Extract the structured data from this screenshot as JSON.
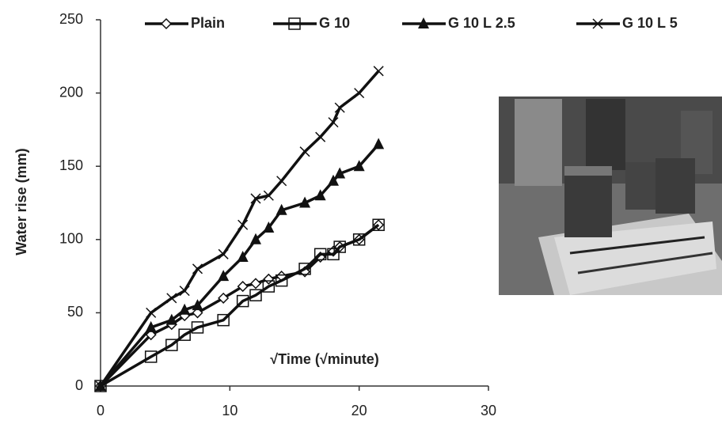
{
  "chart_data": {
    "type": "line",
    "x_label": "√Time (√minute)",
    "y_label": "Water rise (mm)",
    "x": [
      0,
      3.9,
      5.5,
      6.5,
      7.5,
      9.5,
      11,
      12,
      13,
      14,
      15.8,
      17,
      18,
      18.5,
      20,
      21.5
    ],
    "series": [
      {
        "name": "Plain",
        "color": "#111111",
        "marker": "diamond",
        "values": [
          0,
          35,
          42,
          48,
          50,
          60,
          68,
          70,
          73,
          75,
          78,
          88,
          92,
          95,
          100,
          110
        ]
      },
      {
        "name": "G 10",
        "color": "#111111",
        "marker": "square",
        "values": [
          0,
          20,
          28,
          35,
          40,
          45,
          58,
          62,
          68,
          72,
          80,
          90,
          90,
          95,
          100,
          110
        ]
      },
      {
        "name": "G 10 L 2.5",
        "color": "#111111",
        "marker": "triangle",
        "values": [
          0,
          40,
          45,
          52,
          55,
          75,
          88,
          100,
          108,
          120,
          125,
          130,
          140,
          145,
          150,
          165
        ]
      },
      {
        "name": "G 10 L 5",
        "color": "#111111",
        "marker": "cross",
        "values": [
          0,
          50,
          60,
          65,
          80,
          90,
          110,
          128,
          130,
          140,
          160,
          170,
          180,
          190,
          200,
          215
        ]
      }
    ],
    "xlim": [
      0,
      30
    ],
    "xticks": [
      0,
      10,
      20,
      30
    ],
    "ylim": [
      0,
      250
    ],
    "yticks": [
      0,
      50,
      100,
      150,
      200,
      250
    ],
    "grid": false,
    "legend": "top"
  }
}
